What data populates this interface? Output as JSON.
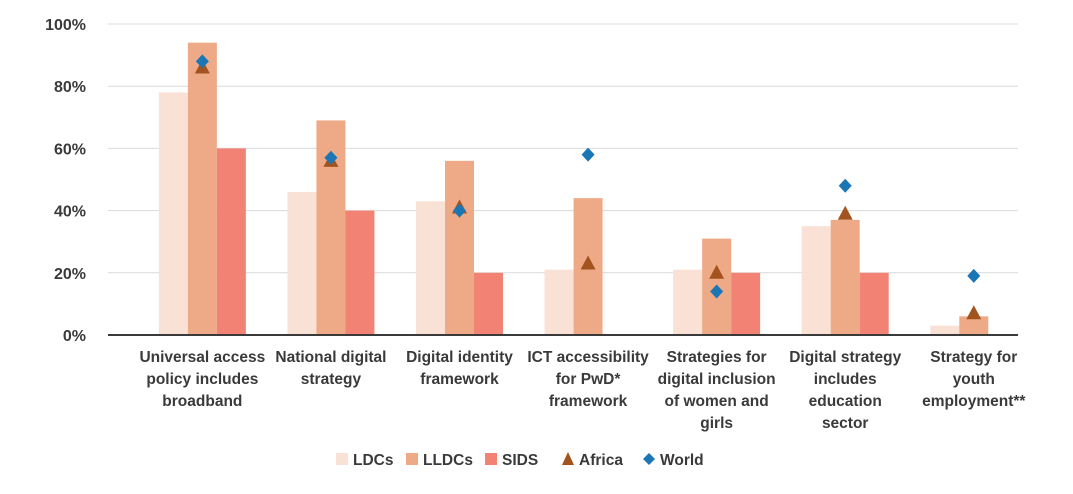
{
  "chart_data": {
    "type": "bar",
    "categories": [
      "Universal access policy includes broadband",
      "National digital strategy",
      "Digital identity framework",
      "ICT accessibility for PwD* framework",
      "Strategies for digital inclusion of women and girls",
      "Digital strategy includes education sector",
      "Strategy for youth employment**"
    ],
    "category_lines": [
      [
        "Universal access",
        "policy includes",
        "broadband"
      ],
      [
        "National digital",
        "strategy"
      ],
      [
        "Digital identity",
        "framework"
      ],
      [
        "ICT accessibility",
        "for PwD*",
        "framework"
      ],
      [
        "Strategies for",
        "digital inclusion",
        "of women and",
        "girls"
      ],
      [
        "Digital strategy",
        "includes",
        "education",
        "sector"
      ],
      [
        "Strategy for",
        "youth",
        "employment**"
      ]
    ],
    "series": [
      {
        "name": "LDCs",
        "kind": "bar",
        "color": "#f9e1d6",
        "values": [
          78,
          46,
          43,
          21,
          21,
          35,
          3
        ]
      },
      {
        "name": "LLDCs",
        "kind": "bar",
        "color": "#eea987",
        "values": [
          94,
          69,
          56,
          44,
          31,
          37,
          6
        ]
      },
      {
        "name": "SIDS",
        "kind": "bar",
        "color": "#f28273",
        "values": [
          60,
          40,
          20,
          0,
          20,
          20,
          0
        ]
      },
      {
        "name": "Africa",
        "kind": "marker",
        "marker": "triangle",
        "color": "#a3541e",
        "values": [
          86,
          56,
          41,
          23,
          20,
          39,
          7
        ]
      },
      {
        "name": "World",
        "kind": "marker",
        "marker": "diamond",
        "color": "#1a76b5",
        "values": [
          88,
          57,
          40,
          58,
          14,
          48,
          19
        ]
      }
    ],
    "ylim": [
      0,
      100
    ],
    "yticks": [
      0,
      20,
      40,
      60,
      80,
      100
    ],
    "ytick_labels": [
      "0%",
      "20%",
      "40%",
      "60%",
      "80%",
      "100%"
    ],
    "grid": true,
    "legend_position": "bottom-center"
  }
}
